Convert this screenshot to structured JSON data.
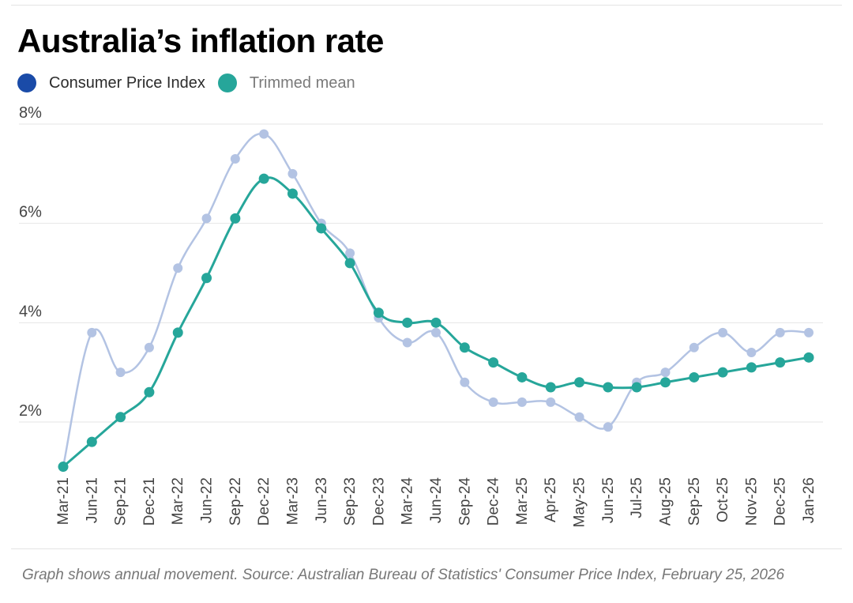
{
  "title": "Australia’s inflation rate",
  "legend": [
    {
      "name": "Consumer Price Index",
      "color": "#1a4ba8",
      "state": "inactive-label-dark"
    },
    {
      "name": "Trimmed mean",
      "color": "#26a69a"
    }
  ],
  "footer": "Graph shows annual movement. Source:  Australian Bureau of Statistics' Consumer Price Index, February 25, 2026",
  "chart_data": {
    "type": "line",
    "title": "Australia’s inflation rate",
    "categories": [
      "Mar-21",
      "Jun-21",
      "Sep-21",
      "Dec-21",
      "Mar-22",
      "Jun-22",
      "Sep-22",
      "Dec-22",
      "Mar-23",
      "Jun-23",
      "Sep-23",
      "Dec-23",
      "Mar-24",
      "Jun-24",
      "Sep-24",
      "Dec-24",
      "Mar-25",
      "Apr-25",
      "May-25",
      "Jun-25",
      "Jul-25",
      "Aug-25",
      "Sep-25",
      "Oct-25",
      "Nov-25",
      "Dec-25",
      "Jan-26"
    ],
    "series": [
      {
        "name": "Consumer Price Index",
        "color": "#b3c3e3",
        "values": [
          1.1,
          3.8,
          3.0,
          3.5,
          5.1,
          6.1,
          7.3,
          7.8,
          7.0,
          6.0,
          5.4,
          4.1,
          3.6,
          3.8,
          2.8,
          2.4,
          2.4,
          2.4,
          2.1,
          1.9,
          2.8,
          3.0,
          3.5,
          3.8,
          3.4,
          3.8,
          3.8
        ]
      },
      {
        "name": "Trimmed mean",
        "color": "#26a69a",
        "values": [
          1.1,
          1.6,
          2.1,
          2.6,
          3.8,
          4.9,
          6.1,
          6.9,
          6.6,
          5.9,
          5.2,
          4.2,
          4.0,
          4.0,
          3.5,
          3.2,
          2.9,
          2.7,
          2.8,
          2.7,
          2.7,
          2.8,
          2.9,
          3.0,
          3.1,
          3.2,
          3.3
        ]
      }
    ],
    "y_ticks": [
      "2%",
      "4%",
      "6%",
      "8%"
    ],
    "y_tick_values": [
      2,
      4,
      6,
      8
    ],
    "ylim": [
      1.0,
      8.0
    ],
    "grid": "horizontal",
    "legend_position": "top-left"
  }
}
